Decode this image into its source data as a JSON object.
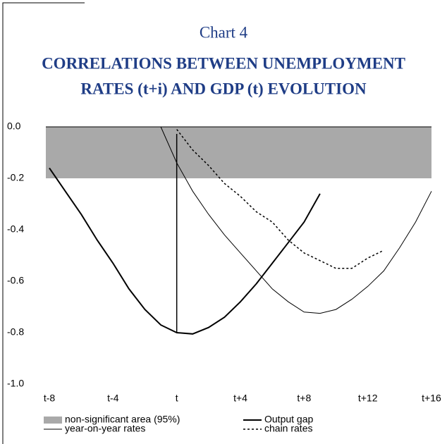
{
  "chart_data": {
    "type": "line",
    "caption": "Chart 4",
    "title": "CORRELATIONS BETWEEN UNEMPLOYMENT",
    "subtitle": "RATES (t+i) AND GDP (t) EVOLUTION",
    "xlim": [
      -8,
      16
    ],
    "xticks": [
      {
        "value": -8,
        "label": "t-8"
      },
      {
        "value": -4,
        "label": "t-4"
      },
      {
        "value": 0,
        "label": "t"
      },
      {
        "value": 4,
        "label": "t+4"
      },
      {
        "value": 8,
        "label": "t+8"
      },
      {
        "value": 12,
        "label": "t+12"
      },
      {
        "value": 16,
        "label": "t+16"
      }
    ],
    "ylim": [
      -1,
      0
    ],
    "yticks": [
      {
        "value": 0,
        "label": "0.0"
      },
      -0.2,
      -0.4,
      -0.6,
      -0.8,
      {
        "value": -1,
        "label": "-1.0"
      }
    ],
    "band": {
      "name": "non-significant area (95%)",
      "range": [
        0,
        -0.2
      ],
      "color": "#a9a9a9"
    },
    "series": [
      {
        "name": "Output gap",
        "color": "#000000",
        "width": 2,
        "dash": "none",
        "x": [
          -8,
          -7,
          -6,
          -5,
          -4,
          -3,
          -2,
          -1,
          0,
          1,
          2,
          3,
          4,
          5,
          6,
          7,
          8,
          9
        ],
        "values": [
          -0.16,
          -0.25,
          -0.34,
          -0.44,
          -0.53,
          -0.63,
          -0.71,
          -0.77,
          -0.8,
          -0.805,
          -0.78,
          -0.74,
          -0.68,
          -0.61,
          -0.53,
          -0.45,
          -0.37,
          -0.26
        ]
      },
      {
        "name": "year-on-year rates",
        "color": "#000000",
        "width": 1,
        "dash": "none",
        "x": [
          -1,
          0,
          1,
          2,
          3,
          4,
          5,
          6,
          7,
          8,
          9,
          10,
          11,
          12,
          13,
          14,
          15,
          16
        ],
        "values": [
          0,
          -0.14,
          -0.25,
          -0.34,
          -0.42,
          -0.49,
          -0.56,
          -0.63,
          -0.68,
          -0.72,
          -0.725,
          -0.71,
          -0.67,
          -0.62,
          -0.56,
          -0.47,
          -0.37,
          -0.25
        ]
      },
      {
        "name": "chain rates",
        "color": "#000000",
        "width": 1.5,
        "dash": "3 3",
        "x": [
          0,
          1,
          2,
          3,
          4,
          5,
          6,
          7,
          8,
          9,
          10,
          11,
          12,
          13
        ],
        "values": [
          -0.01,
          -0.09,
          -0.15,
          -0.22,
          -0.27,
          -0.33,
          -0.37,
          -0.44,
          -0.49,
          -0.52,
          -0.55,
          -0.55,
          -0.51,
          -0.48
        ]
      }
    ]
  }
}
